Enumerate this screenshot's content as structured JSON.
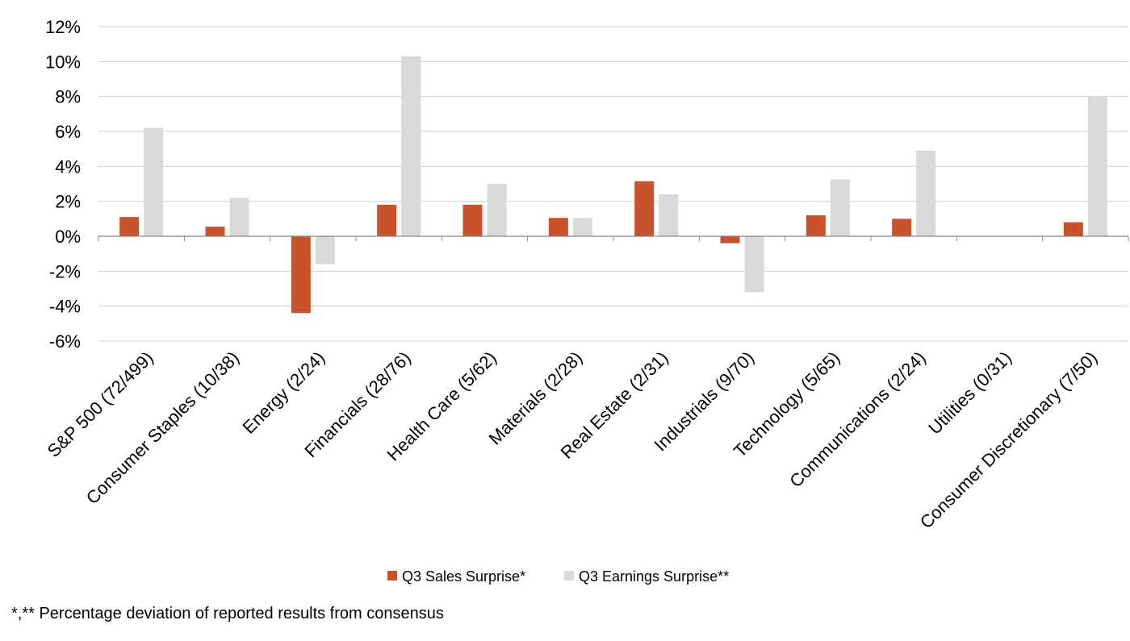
{
  "chart_data": {
    "type": "bar",
    "categories": [
      "S&P 500 (72/499)",
      "Consumer Staples (10/38)",
      "Energy (2/24)",
      "Financials (28/76)",
      "Health Care (5/62)",
      "Materials (2/28)",
      "Real Estate (2/31)",
      "Industrials (9/70)",
      "Technology (5/65)",
      "Communications (2/24)",
      "Utilities (0/31)",
      "Consumer Discretionary (7/50)"
    ],
    "series": [
      {
        "name": "Q3 Sales Surprise*",
        "color": "#c8532a",
        "values": [
          1.1,
          0.55,
          -4.4,
          1.8,
          1.8,
          1.05,
          3.15,
          -0.4,
          1.2,
          1.0,
          0,
          0.8
        ]
      },
      {
        "name": "Q3 Earnings Surprise**",
        "color": "#d9d9d9",
        "values": [
          6.2,
          2.2,
          -1.6,
          10.3,
          3.0,
          1.05,
          2.4,
          -3.2,
          3.25,
          4.9,
          0,
          8.0
        ]
      }
    ],
    "ylim": [
      -6,
      12
    ],
    "yticks": [
      12,
      10,
      8,
      6,
      4,
      2,
      0,
      -2,
      -4,
      -6
    ],
    "ytick_labels": [
      "12%",
      "10%",
      "8%",
      "6%",
      "4%",
      "2%",
      "0%",
      "-2%",
      "-4%",
      "-6%"
    ],
    "grid": true,
    "legend_position": "bottom",
    "footnote": "*,** Percentage deviation of reported results from consensus"
  }
}
